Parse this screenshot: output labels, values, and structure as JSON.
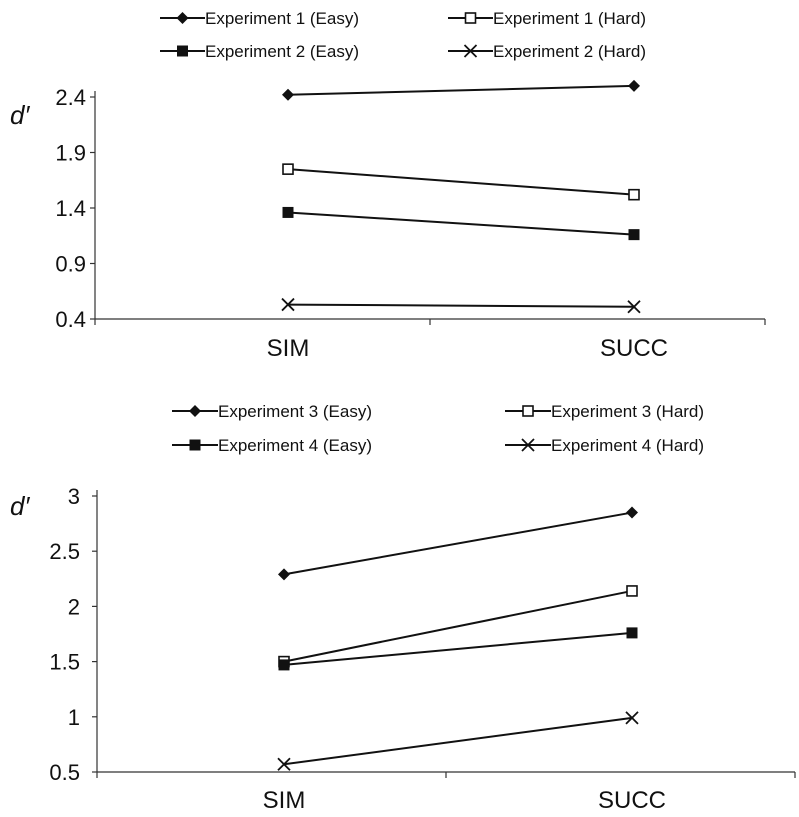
{
  "chart_data": [
    {
      "type": "line",
      "title": "",
      "xlabel": "",
      "ylabel": "d′",
      "categories": [
        "SIM",
        "SUCC"
      ],
      "ylim": [
        0.4,
        2.4
      ],
      "yticks": [
        "2.4",
        "1.9",
        "1.4",
        "0.9",
        "0.4"
      ],
      "ytick_values": [
        2.4,
        1.9,
        1.4,
        0.9,
        0.4
      ],
      "legend_position": "top",
      "grid": false,
      "series": [
        {
          "name": "Experiment 1 (Easy)",
          "marker": "diamond",
          "values": [
            2.42,
            2.5
          ]
        },
        {
          "name": "Experiment 1 (Hard)",
          "marker": "open-square",
          "values": [
            1.75,
            1.52
          ]
        },
        {
          "name": "Experiment 2 (Easy)",
          "marker": "filled-square",
          "values": [
            1.36,
            1.16
          ]
        },
        {
          "name": "Experiment 2 (Hard)",
          "marker": "x",
          "values": [
            0.53,
            0.51
          ]
        }
      ]
    },
    {
      "type": "line",
      "title": "",
      "xlabel": "",
      "ylabel": "d′",
      "categories": [
        "SIM",
        "SUCC"
      ],
      "ylim": [
        0.5,
        3
      ],
      "yticks": [
        "3",
        "2.5",
        "2",
        "1.5",
        "1",
        "0.5"
      ],
      "ytick_values": [
        3,
        2.5,
        2,
        1.5,
        1,
        0.5
      ],
      "legend_position": "top",
      "grid": false,
      "series": [
        {
          "name": "Experiment 3 (Easy)",
          "marker": "diamond",
          "values": [
            2.29,
            2.85
          ]
        },
        {
          "name": "Experiment 3 (Hard)",
          "marker": "open-square",
          "values": [
            1.5,
            2.14
          ]
        },
        {
          "name": "Experiment 4 (Easy)",
          "marker": "filled-square",
          "values": [
            1.47,
            1.76
          ]
        },
        {
          "name": "Experiment 4 (Hard)",
          "marker": "x",
          "values": [
            0.57,
            0.99
          ]
        }
      ]
    }
  ]
}
